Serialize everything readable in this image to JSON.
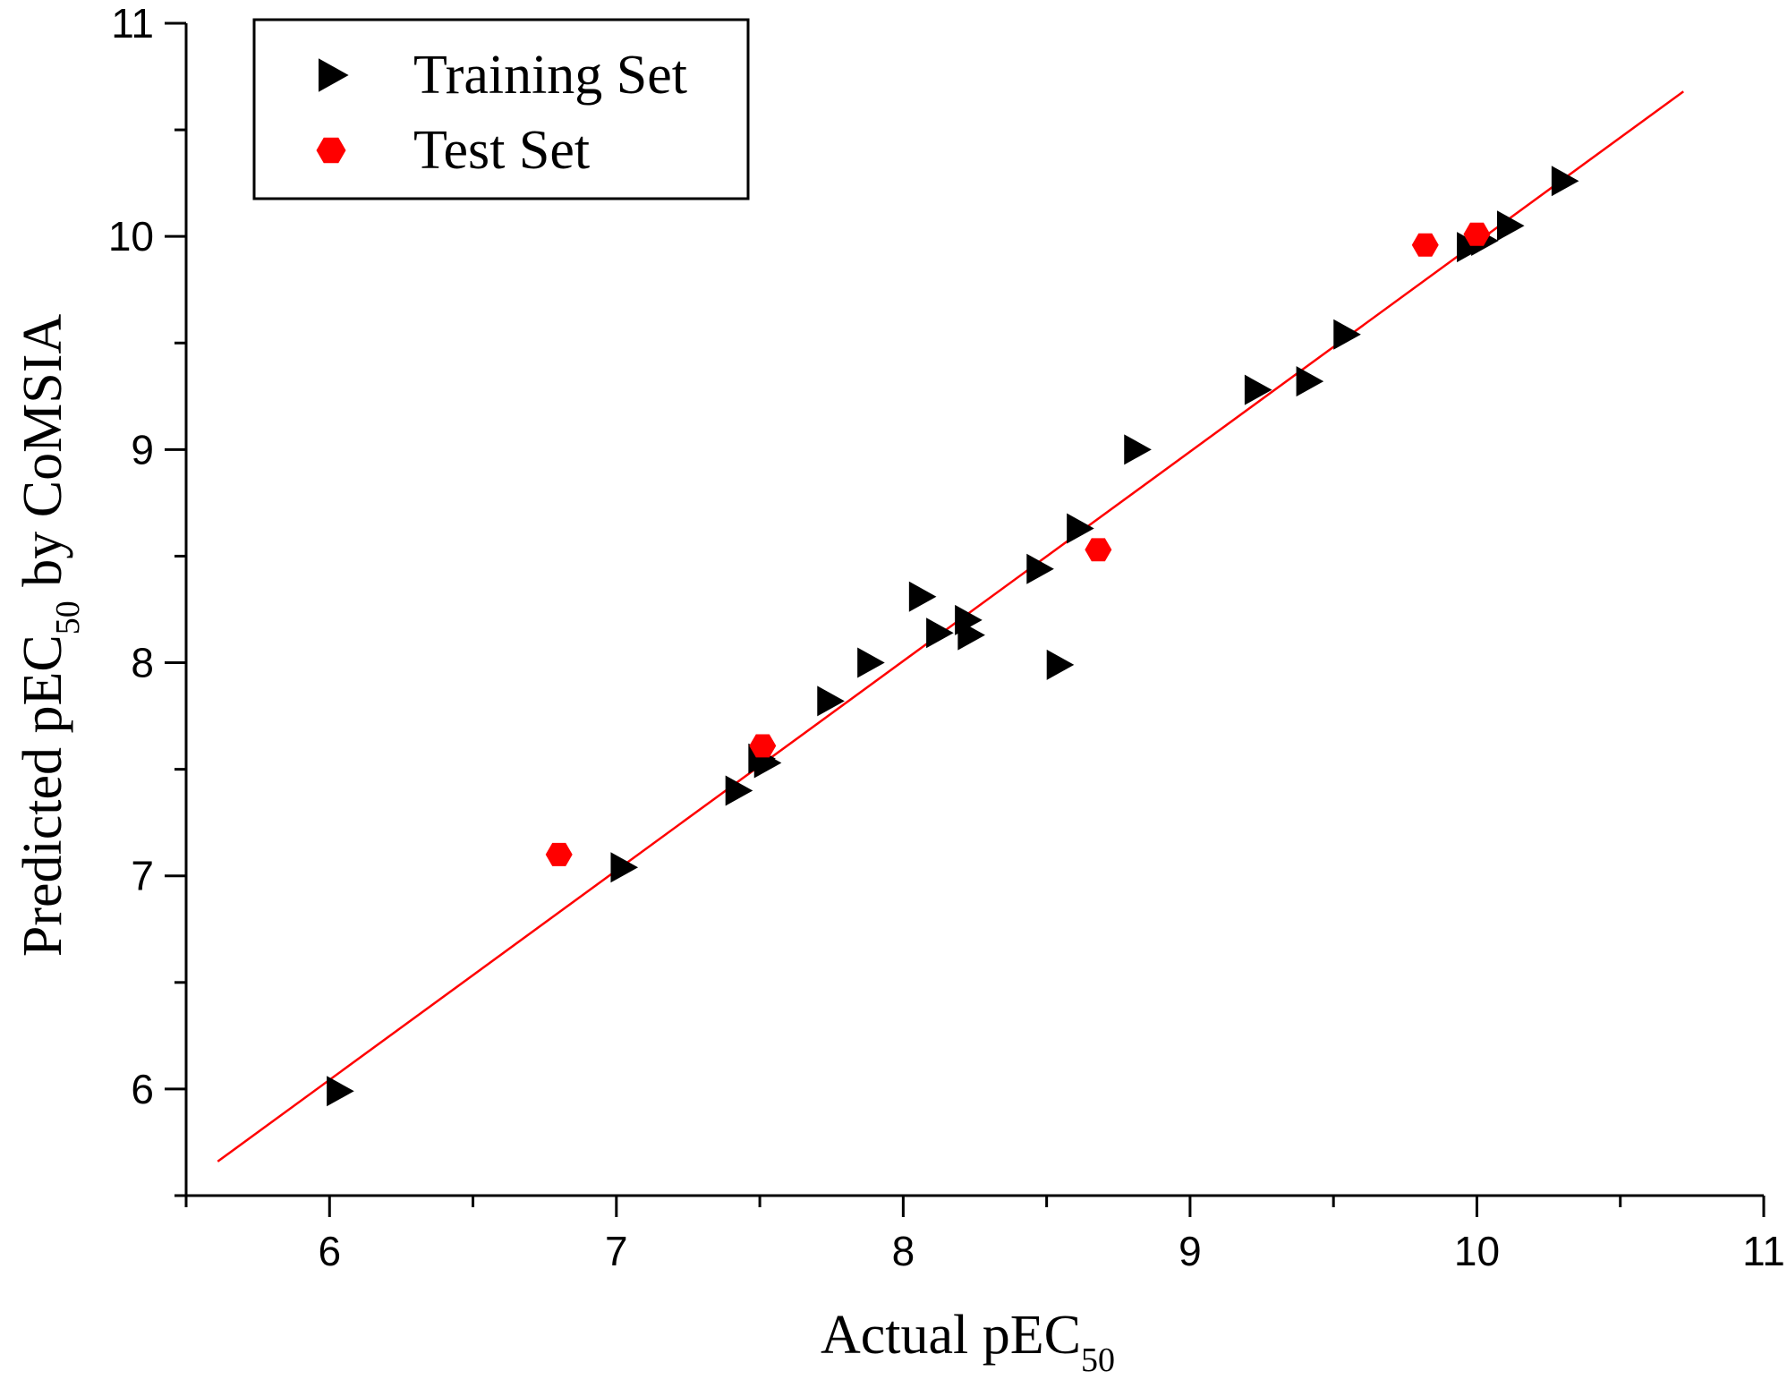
{
  "chart_data": {
    "type": "scatter",
    "title": "",
    "xlabel": {
      "main": "Actual pEC",
      "sub": "50"
    },
    "ylabel": {
      "main": "Predicted pEC",
      "sub": "50",
      "suffix": " by CoMSIA"
    },
    "xlim": [
      5.5,
      11
    ],
    "ylim": [
      5.5,
      11
    ],
    "x_ticks": [
      6,
      7,
      8,
      9,
      10,
      11
    ],
    "y_ticks": [
      6,
      7,
      8,
      9,
      10,
      11
    ],
    "x_minor_step": 0.5,
    "y_minor_step": 0.5,
    "grid": false,
    "legend_position": "top-left",
    "series": [
      {
        "name": "Training Set",
        "marker": "triangle-right",
        "color": "#000000",
        "points": [
          [
            6.03,
            5.99
          ],
          [
            7.02,
            7.04
          ],
          [
            7.42,
            7.4
          ],
          [
            7.5,
            7.55
          ],
          [
            7.52,
            7.53
          ],
          [
            7.74,
            7.82
          ],
          [
            7.88,
            8.0
          ],
          [
            8.06,
            8.31
          ],
          [
            8.12,
            8.14
          ],
          [
            8.22,
            8.2
          ],
          [
            8.23,
            8.13
          ],
          [
            8.47,
            8.44
          ],
          [
            8.54,
            7.99
          ],
          [
            8.61,
            8.63
          ],
          [
            8.81,
            9.0
          ],
          [
            9.23,
            9.28
          ],
          [
            9.41,
            9.32
          ],
          [
            9.54,
            9.54
          ],
          [
            9.97,
            9.95
          ],
          [
            10.02,
            9.98
          ],
          [
            10.11,
            10.05
          ],
          [
            10.3,
            10.26
          ]
        ]
      },
      {
        "name": "Test Set",
        "marker": "hexagon",
        "color": "#ff0000",
        "points": [
          [
            6.8,
            7.1
          ],
          [
            7.51,
            7.61
          ],
          [
            8.68,
            8.53
          ],
          [
            9.82,
            9.96
          ],
          [
            10.0,
            10.01
          ]
        ]
      }
    ],
    "fit_line": {
      "color": "#ff0000",
      "x_range": [
        5.61,
        10.72
      ],
      "y_range": [
        5.66,
        10.68
      ]
    }
  }
}
